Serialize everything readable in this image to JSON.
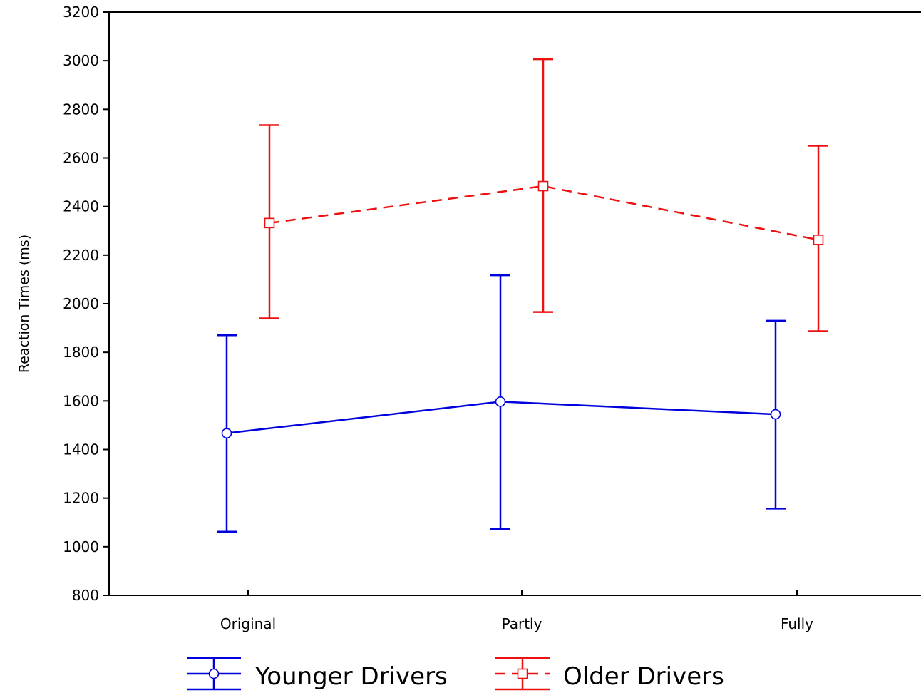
{
  "chart_data": {
    "type": "line",
    "title": "",
    "xlabel": "",
    "ylabel": "Reaction Times (ms)",
    "categories": [
      "Original",
      "Partly",
      "Fully"
    ],
    "ylim": [
      800,
      3200
    ],
    "yticks": [
      800,
      1000,
      1200,
      1400,
      1600,
      1800,
      2000,
      2200,
      2400,
      2600,
      2800,
      3000,
      3200
    ],
    "grid": false,
    "legend_position": "bottom",
    "series": [
      {
        "name": "Younger Drivers",
        "color": "#0000dd",
        "line_style": "solid",
        "marker": "circle",
        "values": [
          1467,
          1597,
          1545
        ],
        "error_low": [
          1062,
          1072,
          1157
        ],
        "error_high": [
          1870,
          2117,
          1930
        ]
      },
      {
        "name": "Older Drivers",
        "color": "#ee1111",
        "line_style": "dashed",
        "marker": "square",
        "values": [
          2332,
          2484,
          2263
        ],
        "error_low": [
          1940,
          1966,
          1887
        ],
        "error_high": [
          2735,
          3006,
          2650
        ]
      }
    ]
  }
}
